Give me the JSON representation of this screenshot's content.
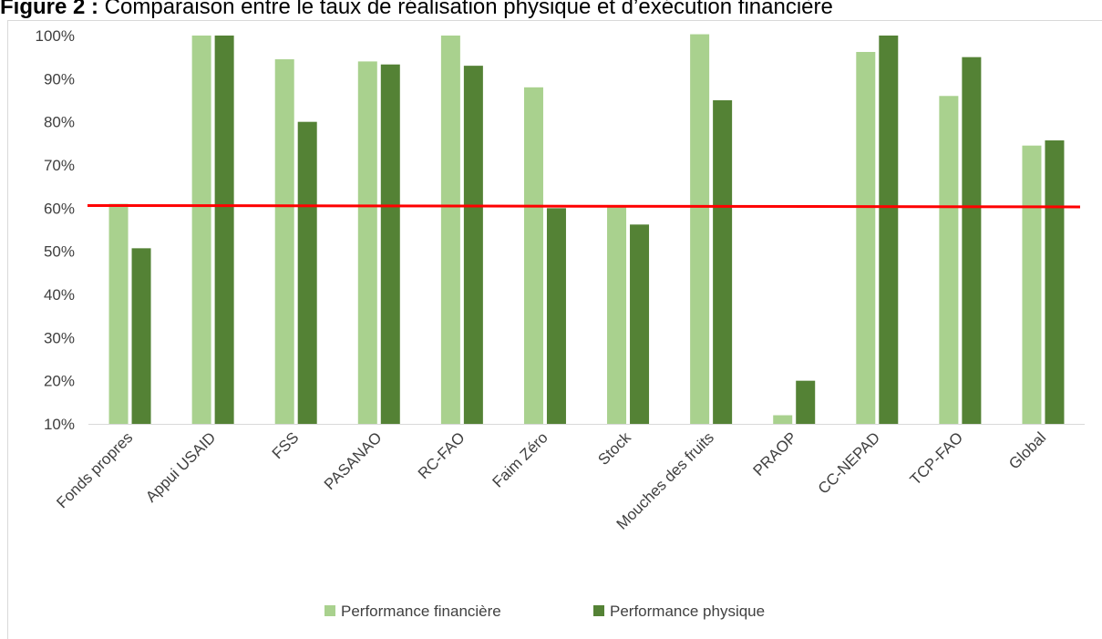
{
  "figure": {
    "title_lead": "Figure 2 :",
    "title_text": " Comparaison entre le taux de réalisation physique et d’exécution financière"
  },
  "chart_data": {
    "type": "bar",
    "categories": [
      "Fonds propres",
      "Appui USAID",
      "FSS",
      "PASANAO",
      "RC-FAO",
      "Faim Zéro",
      "Stock",
      "Mouches des fruits",
      "PRAOP",
      "CC-NEPAD",
      "TCP-FAO",
      "Global"
    ],
    "series": [
      {
        "name": "Performance financière",
        "color": "#a9d18e",
        "values": [
          61,
          100,
          94.5,
          94,
          100,
          88,
          60.5,
          100.3,
          12,
          96.2,
          86,
          74.5
        ]
      },
      {
        "name": "Performance physique",
        "color": "#548235",
        "values": [
          50.7,
          100,
          80,
          93.3,
          93,
          60,
          56.2,
          85,
          20,
          100,
          95,
          75.7
        ]
      }
    ],
    "reference_line": {
      "value": 60.5,
      "color": "#ff0000"
    },
    "ylim": [
      10,
      100
    ],
    "yticks": [
      "10%",
      "20%",
      "30%",
      "40%",
      "50%",
      "60%",
      "70%",
      "80%",
      "90%",
      "100%"
    ],
    "grid": false,
    "legend_position": "bottom",
    "xlabel": "",
    "ylabel": ""
  }
}
